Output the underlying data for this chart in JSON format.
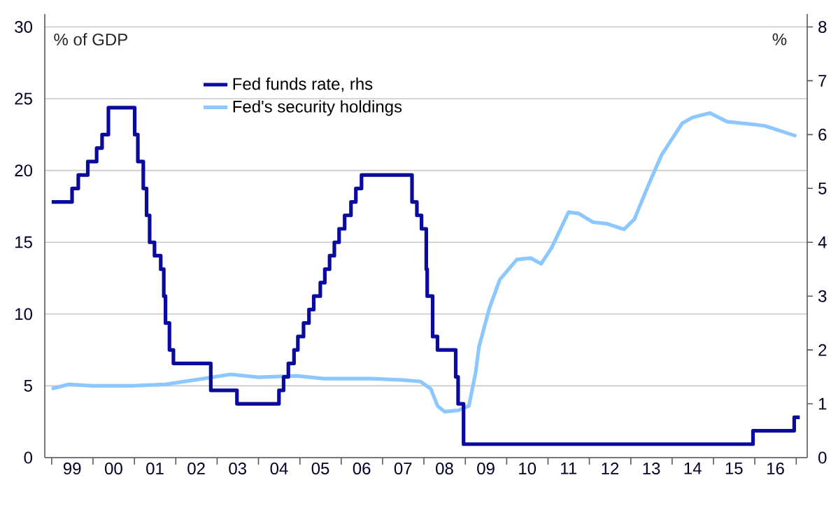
{
  "chart_data": {
    "type": "line",
    "ylabel": "% of GDP",
    "y2label": "%",
    "xlim": [
      "1998-11-01",
      "2017-04-08"
    ],
    "xticks": [
      {
        "value": "1999",
        "label": null
      },
      {
        "value": "2000",
        "label": null
      },
      {
        "value": "2001",
        "label": null
      },
      {
        "value": "2002",
        "label": null
      },
      {
        "value": "2003",
        "label": null
      },
      {
        "value": "2004",
        "label": null
      },
      {
        "value": "2005",
        "label": null
      },
      {
        "value": "2006",
        "label": null
      },
      {
        "value": "2007",
        "label": null
      },
      {
        "value": "2008",
        "label": null
      },
      {
        "value": "2009",
        "label": null
      },
      {
        "value": "2010",
        "label": null
      },
      {
        "value": "2011",
        "label": null
      },
      {
        "value": "2012",
        "label": null
      },
      {
        "value": "2013",
        "label": null
      },
      {
        "value": "2014",
        "label": null
      },
      {
        "value": "2015",
        "label": null
      },
      {
        "value": "2016",
        "label": null
      },
      {
        "value": "2017",
        "label": null
      },
      {
        "value": "1999-07",
        "label": "99"
      },
      {
        "value": "2000-07",
        "label": "00"
      },
      {
        "value": "2001-07",
        "label": "01"
      },
      {
        "value": "2002-07",
        "label": "02"
      },
      {
        "value": "2003-07",
        "label": "03"
      },
      {
        "value": "2004-07",
        "label": "04"
      },
      {
        "value": "2005-07",
        "label": "05"
      },
      {
        "value": "2006-07",
        "label": "06"
      },
      {
        "value": "2007-07",
        "label": "07"
      },
      {
        "value": "2008-07",
        "label": "08"
      },
      {
        "value": "2009-07",
        "label": "09"
      },
      {
        "value": "2010-07",
        "label": "10"
      },
      {
        "value": "2011-07",
        "label": "11"
      },
      {
        "value": "2012-07",
        "label": "12"
      },
      {
        "value": "2013-07",
        "label": "13"
      },
      {
        "value": "2014-07",
        "label": "14"
      },
      {
        "value": "2015-07",
        "label": "15"
      },
      {
        "value": "2016-07",
        "label": "16"
      }
    ],
    "ylim": [
      0,
      30.9
    ],
    "yticks": [
      0,
      5,
      10,
      15,
      20,
      25,
      30
    ],
    "y2lim": [
      0,
      8.24
    ],
    "y2ticks": [
      0,
      1,
      2,
      3,
      4,
      5,
      6,
      7,
      8
    ],
    "grid": "y",
    "legend": "top",
    "series": [
      {
        "name": "Fed funds rate, rhs",
        "type": "step",
        "axis": "y2",
        "color": "#0a0a9c",
        "x": [
          "1999-01-01",
          "1999-06-30",
          "1999-08-24",
          "1999-11-16",
          "2000-02-02",
          "2000-03-21",
          "2000-05-16",
          "2001-01-03",
          "2001-01-31",
          "2001-03-20",
          "2001-04-18",
          "2001-05-15",
          "2001-06-27",
          "2001-08-21",
          "2001-09-17",
          "2001-10-02",
          "2001-11-06",
          "2001-12-11",
          "2002-11-06",
          "2003-06-25",
          "2004-06-30",
          "2004-08-10",
          "2004-09-21",
          "2004-11-10",
          "2004-12-14",
          "2005-02-02",
          "2005-03-22",
          "2005-05-03",
          "2005-06-30",
          "2005-08-09",
          "2005-09-20",
          "2005-11-01",
          "2005-12-13",
          "2006-01-31",
          "2006-03-28",
          "2006-05-10",
          "2006-06-29",
          "2007-09-18",
          "2007-10-31",
          "2007-12-11",
          "2008-01-22",
          "2008-01-30",
          "2008-03-18",
          "2008-04-30",
          "2008-10-08",
          "2008-10-29",
          "2008-12-16",
          "2015-12-16",
          "2016-12-14",
          "2017-02-01"
        ],
        "values": [
          4.75,
          5.0,
          5.25,
          5.5,
          5.75,
          6.0,
          6.5,
          6.0,
          5.5,
          5.0,
          4.5,
          4.0,
          3.75,
          3.5,
          3.0,
          2.5,
          2.0,
          1.75,
          1.25,
          1.0,
          1.25,
          1.5,
          1.75,
          2.0,
          2.25,
          2.5,
          2.75,
          3.0,
          3.25,
          3.5,
          3.75,
          4.0,
          4.25,
          4.5,
          4.75,
          5.0,
          5.25,
          4.75,
          4.5,
          4.25,
          3.5,
          3.0,
          2.25,
          2.0,
          1.5,
          1.0,
          0.25,
          0.5,
          0.75,
          0.75
        ]
      },
      {
        "name": "Fed's security holdings",
        "type": "line",
        "color": "#8cc8ff",
        "x": [
          "1999-01",
          "1999-06",
          "2000-01",
          "2000-12",
          "2001-10",
          "2002-09",
          "2003-05",
          "2004-01",
          "2004-12",
          "2005-08",
          "2006-10",
          "2007-07",
          "2007-12",
          "2008-03",
          "2008-05",
          "2008-07",
          "2008-11",
          "2009-02",
          "2009-04",
          "2009-05",
          "2009-08",
          "2009-11",
          "2010-04",
          "2010-08",
          "2010-11",
          "2011-02",
          "2011-07",
          "2011-10",
          "2012-02",
          "2012-06",
          "2012-11",
          "2013-02",
          "2013-06",
          "2013-10",
          "2014-04",
          "2014-07",
          "2014-12",
          "2015-05",
          "2016-01",
          "2016-04",
          "2017-01"
        ],
        "values": [
          4.8,
          5.1,
          5.0,
          5.0,
          5.1,
          5.5,
          5.8,
          5.6,
          5.7,
          5.5,
          5.5,
          5.4,
          5.3,
          4.8,
          3.6,
          3.2,
          3.3,
          3.6,
          5.9,
          7.7,
          10.4,
          12.4,
          13.8,
          13.9,
          13.5,
          14.6,
          17.1,
          17.0,
          16.4,
          16.3,
          15.9,
          16.6,
          18.9,
          21.1,
          23.3,
          23.7,
          24.0,
          23.4,
          23.2,
          23.1,
          22.4
        ]
      }
    ]
  }
}
